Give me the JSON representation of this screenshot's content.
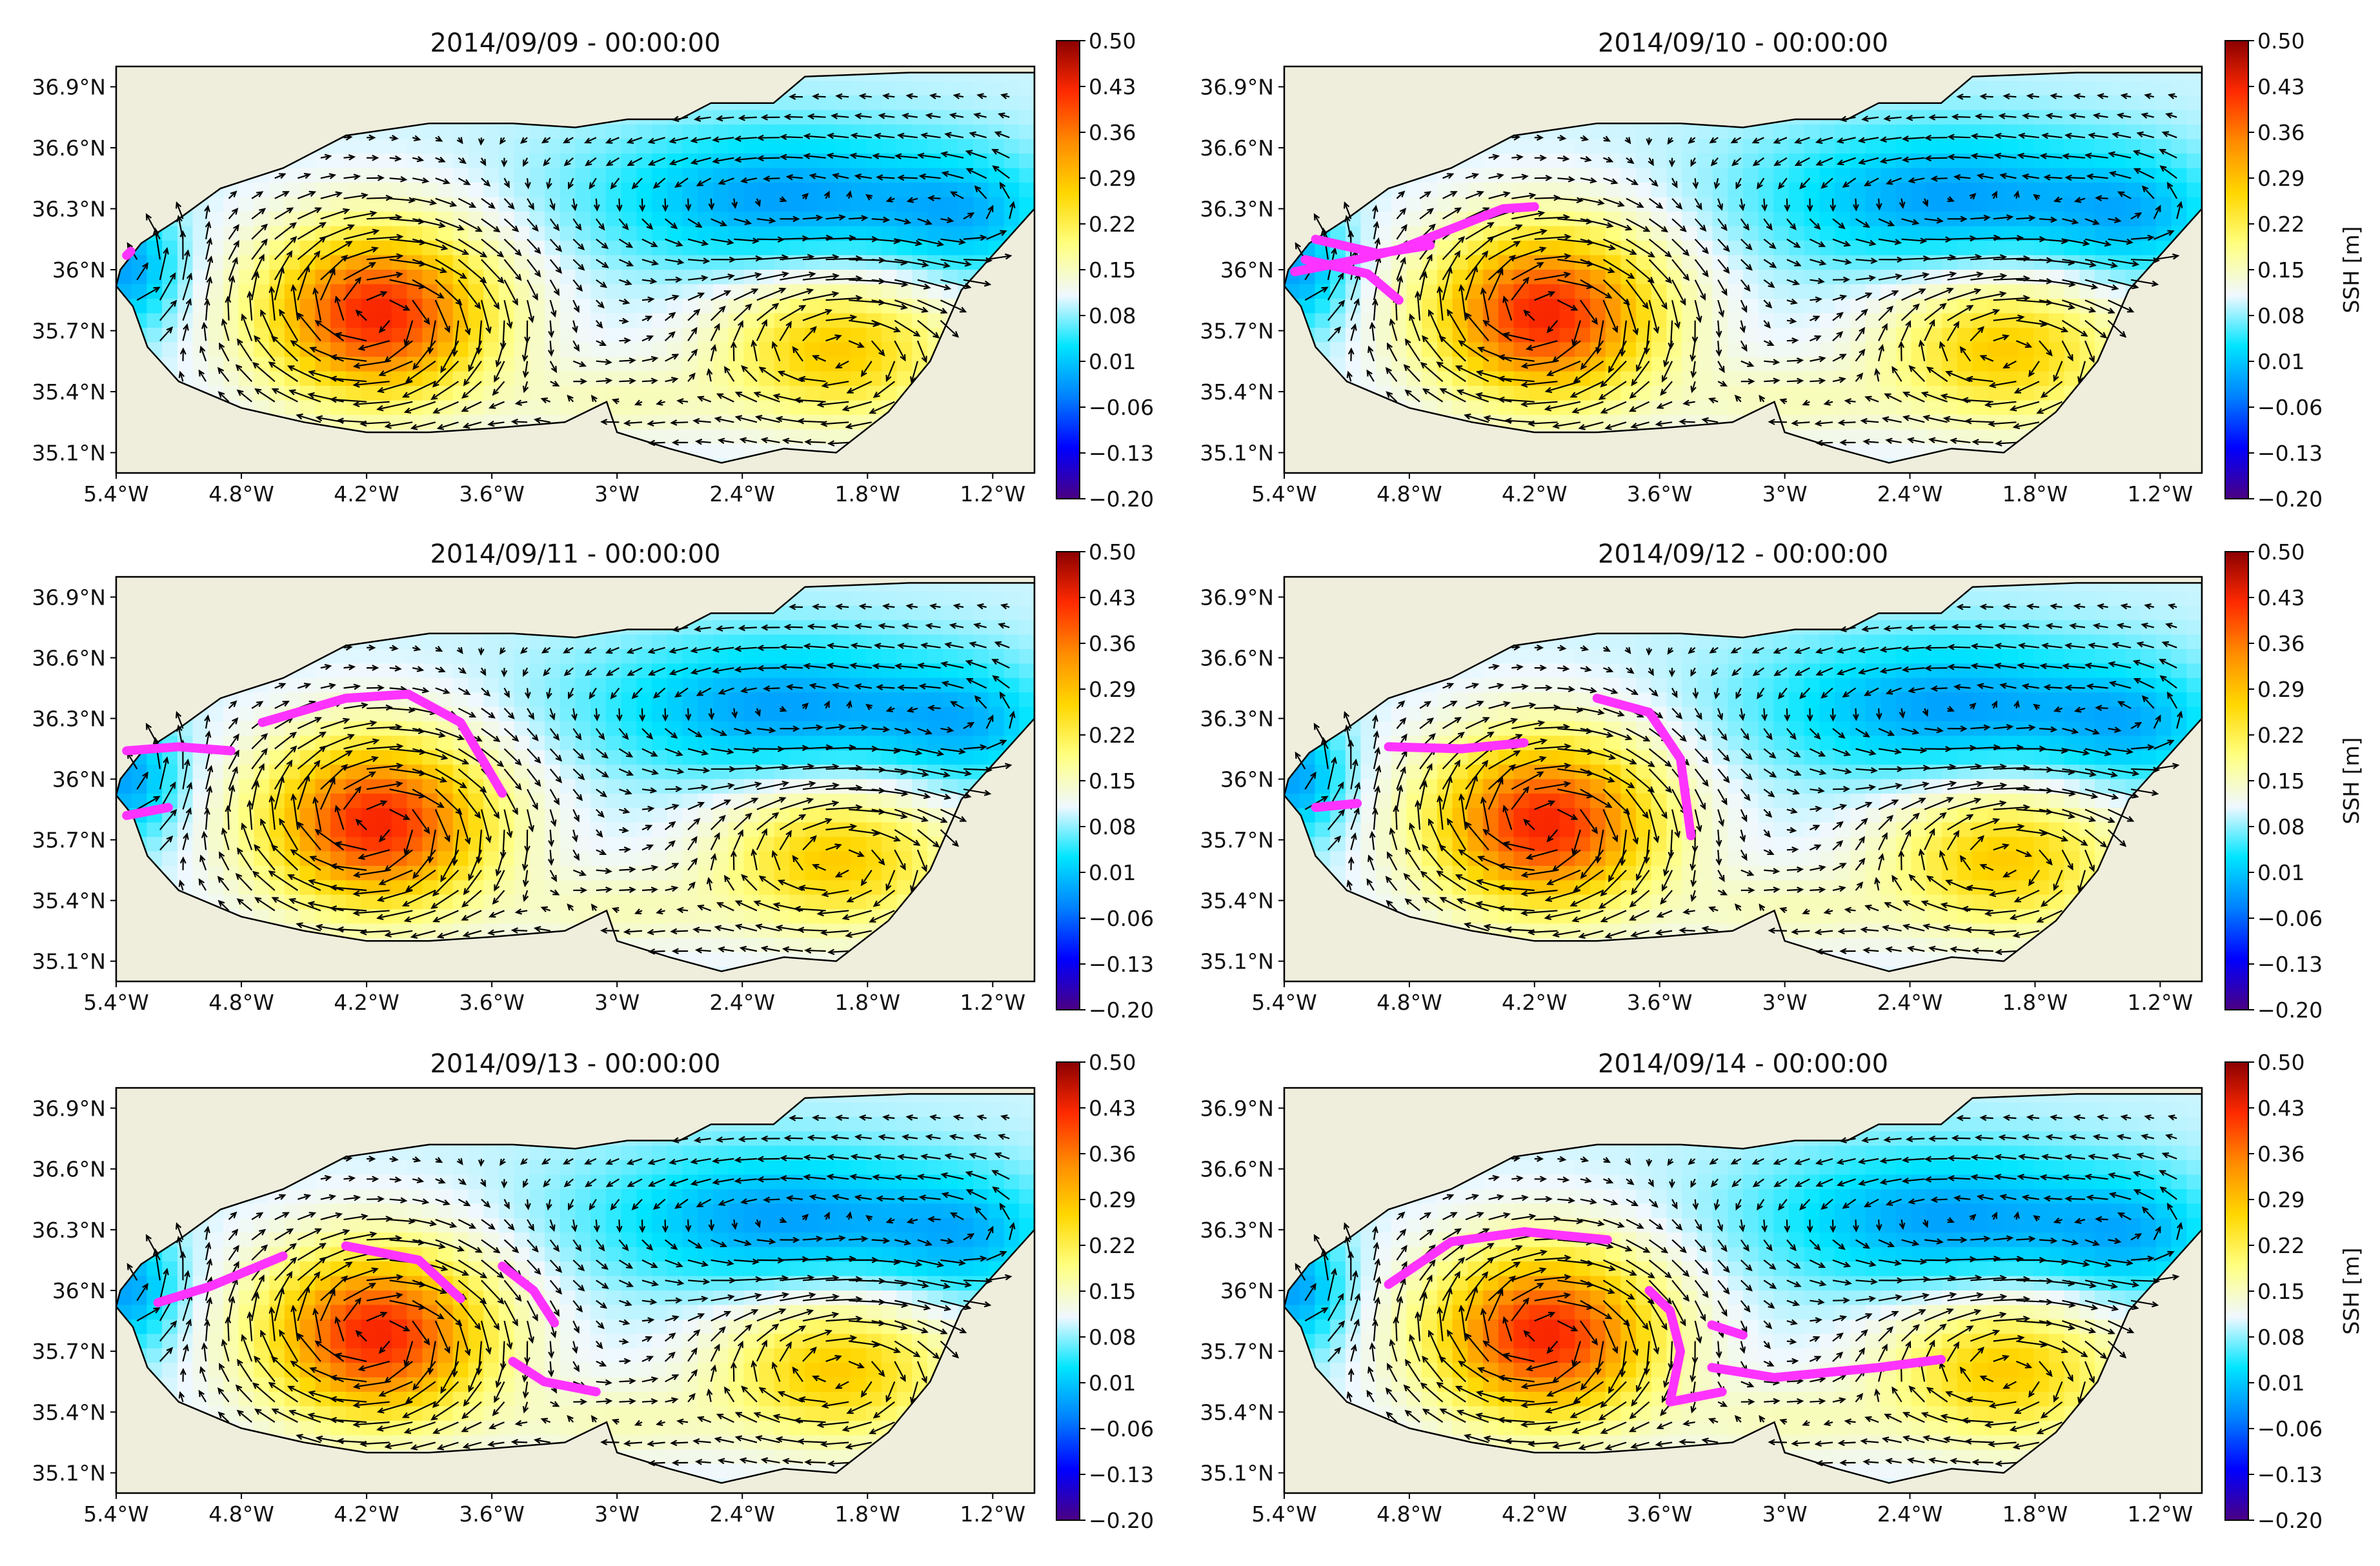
{
  "chart_data": {
    "type": "heatmap",
    "description_units": "SSH [m]",
    "colorbar": {
      "label": "SSH [m]",
      "ticks": [
        "0.50",
        "0.43",
        "0.36",
        "0.29",
        "0.22",
        "0.15",
        "0.08",
        "0.01",
        "−0.06",
        "−0.13",
        "−0.20"
      ],
      "min": -0.2,
      "max": 0.5,
      "colors": [
        "#4b0082",
        "#0000ff",
        "#0080ff",
        "#00e5ff",
        "#f0f8ff",
        "#ffff80",
        "#ffd700",
        "#ff8c00",
        "#ff2a00",
        "#8b0000"
      ]
    },
    "x_ticks": [
      "5.4°W",
      "4.8°W",
      "4.2°W",
      "3.6°W",
      "3°W",
      "2.4°W",
      "1.8°W",
      "1.2°W"
    ],
    "y_ticks": [
      "36.9°N",
      "36.6°N",
      "36.3°N",
      "36°N",
      "35.7°N",
      "35.4°N",
      "35.1°N"
    ],
    "xlim": [
      -5.4,
      -1.0
    ],
    "ylim": [
      35.0,
      37.0
    ],
    "panels": [
      {
        "title": "2014/09/09 - 00:00:00",
        "show_cbar_label": false,
        "tracks": [
          [
            [
              -5.35,
              36.07
            ],
            [
              -5.33,
              36.09
            ]
          ]
        ]
      },
      {
        "title": "2014/09/10 - 00:00:00",
        "show_cbar_label": true,
        "tracks": [
          [
            [
              -5.35,
              35.99
            ],
            [
              -5.05,
              36.05
            ],
            [
              -4.85,
              36.1
            ],
            [
              -4.55,
              36.22
            ],
            [
              -4.35,
              36.3
            ],
            [
              -4.2,
              36.31
            ]
          ],
          [
            [
              -5.3,
              36.05
            ],
            [
              -5.0,
              35.98
            ],
            [
              -4.85,
              35.85
            ]
          ],
          [
            [
              -5.25,
              36.15
            ],
            [
              -4.95,
              36.08
            ],
            [
              -4.7,
              36.12
            ]
          ]
        ]
      },
      {
        "title": "2014/09/11 - 00:00:00",
        "show_cbar_label": false,
        "tracks": [
          [
            [
              -5.35,
              36.14
            ],
            [
              -5.1,
              36.16
            ],
            [
              -4.85,
              36.14
            ]
          ],
          [
            [
              -5.35,
              35.82
            ],
            [
              -5.15,
              35.86
            ]
          ],
          [
            [
              -4.7,
              36.28
            ],
            [
              -4.3,
              36.4
            ],
            [
              -4.0,
              36.42
            ],
            [
              -3.75,
              36.28
            ],
            [
              -3.55,
              35.93
            ]
          ]
        ]
      },
      {
        "title": "2014/09/12 - 00:00:00",
        "show_cbar_label": true,
        "tracks": [
          [
            [
              -4.9,
              36.16
            ],
            [
              -4.55,
              36.15
            ],
            [
              -4.25,
              36.18
            ]
          ],
          [
            [
              -5.25,
              35.86
            ],
            [
              -5.05,
              35.88
            ]
          ],
          [
            [
              -3.9,
              36.4
            ],
            [
              -3.65,
              36.33
            ],
            [
              -3.5,
              36.1
            ],
            [
              -3.45,
              35.72
            ]
          ]
        ]
      },
      {
        "title": "2014/09/13 - 00:00:00",
        "show_cbar_label": false,
        "tracks": [
          [
            [
              -5.2,
              35.94
            ],
            [
              -4.95,
              36.02
            ],
            [
              -4.6,
              36.17
            ]
          ],
          [
            [
              -4.3,
              36.22
            ],
            [
              -3.95,
              36.15
            ],
            [
              -3.75,
              35.96
            ]
          ],
          [
            [
              -3.55,
              36.12
            ],
            [
              -3.4,
              36.0
            ],
            [
              -3.3,
              35.84
            ]
          ],
          [
            [
              -3.5,
              35.65
            ],
            [
              -3.35,
              35.55
            ],
            [
              -3.1,
              35.5
            ]
          ]
        ]
      },
      {
        "title": "2014/09/14 - 00:00:00",
        "show_cbar_label": true,
        "tracks": [
          [
            [
              -4.9,
              36.03
            ],
            [
              -4.6,
              36.24
            ],
            [
              -4.25,
              36.29
            ],
            [
              -3.85,
              36.25
            ]
          ],
          [
            [
              -3.65,
              36.0
            ],
            [
              -3.55,
              35.9
            ],
            [
              -3.5,
              35.7
            ],
            [
              -3.55,
              35.45
            ],
            [
              -3.3,
              35.5
            ]
          ],
          [
            [
              -3.35,
              35.62
            ],
            [
              -3.05,
              35.57
            ],
            [
              -2.55,
              35.62
            ],
            [
              -2.25,
              35.66
            ]
          ],
          [
            [
              -3.35,
              35.83
            ],
            [
              -3.2,
              35.78
            ]
          ]
        ]
      }
    ]
  }
}
